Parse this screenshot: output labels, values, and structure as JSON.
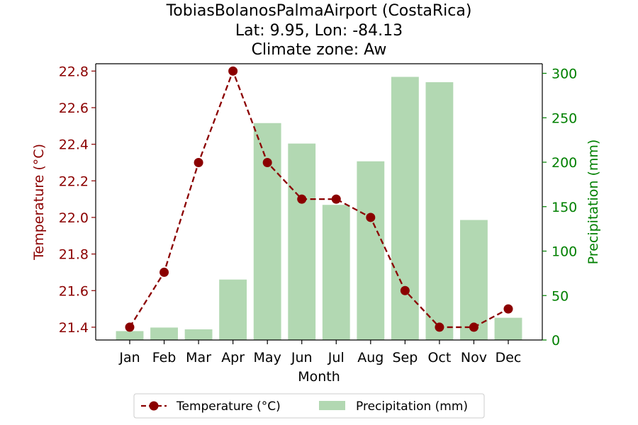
{
  "chart_data": {
    "type": "bar",
    "title_lines": [
      "TobiasBolanosPalmaAirport (CostaRica)",
      "Lat: 9.95, Lon: -84.13",
      "Climate zone: Aw"
    ],
    "xlabel": "Month",
    "ylabel_left": "Temperature (°C)",
    "ylabel_right": "Precipitation (mm)",
    "categories": [
      "Jan",
      "Feb",
      "Mar",
      "Apr",
      "May",
      "Jun",
      "Jul",
      "Aug",
      "Sep",
      "Oct",
      "Nov",
      "Dec"
    ],
    "series": [
      {
        "name": "Temperature (°C)",
        "type": "line",
        "axis": "left",
        "color": "#8b0000",
        "style": "dashed",
        "marker": "circle",
        "values": [
          21.4,
          21.7,
          22.3,
          22.8,
          22.3,
          22.1,
          22.1,
          22.0,
          21.6,
          21.4,
          21.4,
          21.5
        ]
      },
      {
        "name": "Precipitation (mm)",
        "type": "bar",
        "axis": "right",
        "color": "#b2d8b2",
        "values": [
          10,
          14,
          12,
          68,
          244,
          221,
          152,
          201,
          296,
          290,
          135,
          25
        ]
      }
    ],
    "ylim_left": [
      21.33,
      22.84
    ],
    "yticks_left": [
      "21.4",
      "21.6",
      "21.8",
      "22.0",
      "22.2",
      "22.4",
      "22.6",
      "22.8"
    ],
    "ylim_right": [
      0,
      300
    ],
    "yticks_right": [
      "0",
      "50",
      "100",
      "150",
      "200",
      "250",
      "300"
    ],
    "left_axis_color": "#8b0000",
    "right_axis_color": "#008000",
    "grid": false,
    "legend_position": "bottom-center"
  }
}
